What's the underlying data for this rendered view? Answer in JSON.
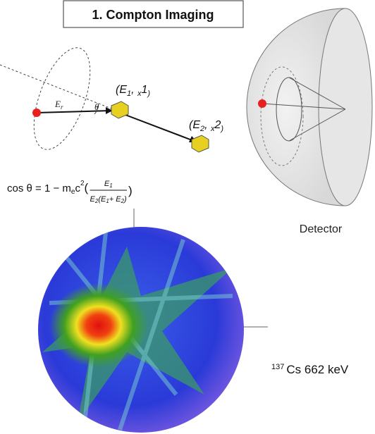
{
  "title": "1. Compton Imaging",
  "scatter_points": [
    {
      "label": [
        "(E",
        "1",
        ", ",
        "x",
        "1",
        ")"
      ]
    },
    {
      "label": [
        "(E",
        "2",
        ", ",
        "x",
        "2",
        ")"
      ]
    }
  ],
  "source_label": [
    "E",
    "r"
  ],
  "angle_label": "θ",
  "formula": {
    "lhs": [
      "cos θ  =  1 − m",
      "e",
      "c"
    ],
    "power": "2",
    "open": "(",
    "numerator": [
      "E",
      "1"
    ],
    "denominator": [
      "E",
      "2",
      "(E",
      "1",
      "+ E",
      "2",
      ")"
    ],
    "close": ")"
  },
  "detector_label": "Detector",
  "caption": {
    "isotope_mass": "137",
    "text": "Cs 662 keV"
  }
}
